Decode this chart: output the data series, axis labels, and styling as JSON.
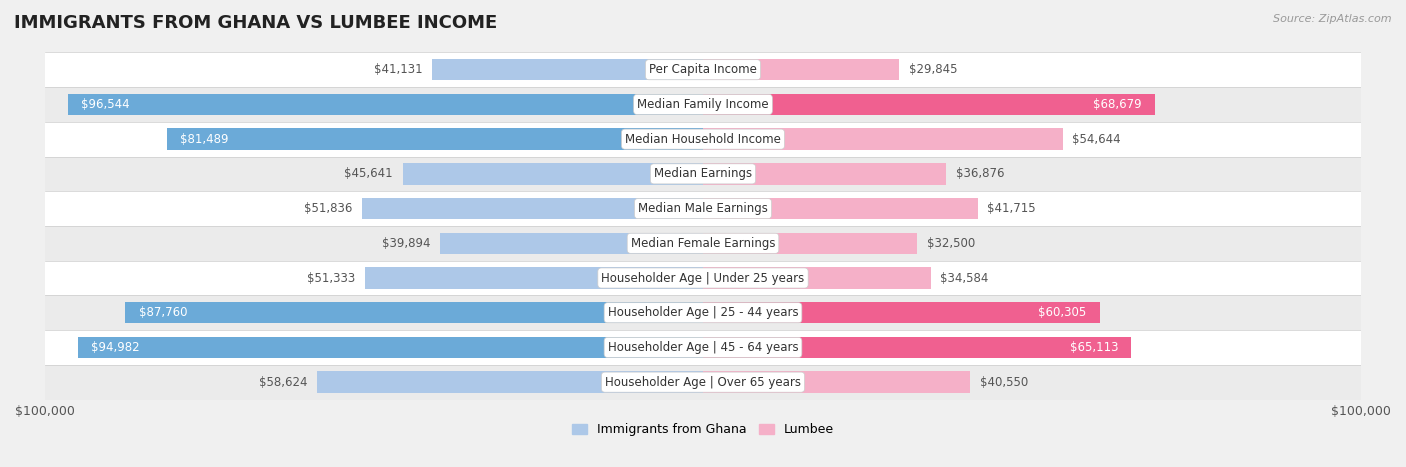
{
  "title": "IMMIGRANTS FROM GHANA VS LUMBEE INCOME",
  "source": "Source: ZipAtlas.com",
  "categories": [
    "Per Capita Income",
    "Median Family Income",
    "Median Household Income",
    "Median Earnings",
    "Median Male Earnings",
    "Median Female Earnings",
    "Householder Age | Under 25 years",
    "Householder Age | 25 - 44 years",
    "Householder Age | 45 - 64 years",
    "Householder Age | Over 65 years"
  ],
  "ghana_values": [
    41131,
    96544,
    81489,
    45641,
    51836,
    39894,
    51333,
    87760,
    94982,
    58624
  ],
  "lumbee_values": [
    29845,
    68679,
    54644,
    36876,
    41715,
    32500,
    34584,
    60305,
    65113,
    40550
  ],
  "ghana_labels": [
    "$41,131",
    "$96,544",
    "$81,489",
    "$45,641",
    "$51,836",
    "$39,894",
    "$51,333",
    "$87,760",
    "$94,982",
    "$58,624"
  ],
  "lumbee_labels": [
    "$29,845",
    "$68,679",
    "$54,644",
    "$36,876",
    "$41,715",
    "$32,500",
    "$34,584",
    "$60,305",
    "$65,113",
    "$40,550"
  ],
  "ghana_bar_color_light": "#adc8e8",
  "ghana_bar_color_dark": "#6baad8",
  "lumbee_bar_color_light": "#f5b0c8",
  "lumbee_bar_color_dark": "#f06090",
  "ghana_dark_threshold": 70000,
  "lumbee_dark_threshold": 55000,
  "x_min": -100000,
  "x_max": 100000,
  "x_tick_labels": [
    "$100,000",
    "$100,000"
  ],
  "background_color": "#f0f0f0",
  "row_bg_colors": [
    "#ffffff",
    "#ebebeb",
    "#ffffff",
    "#ebebeb",
    "#ffffff",
    "#ebebeb",
    "#ffffff",
    "#ebebeb",
    "#ffffff",
    "#ebebeb"
  ],
  "legend_ghana": "Immigrants from Ghana",
  "legend_lumbee": "Lumbee",
  "title_fontsize": 13,
  "category_fontsize": 8.5,
  "value_label_fontsize": 8.5
}
